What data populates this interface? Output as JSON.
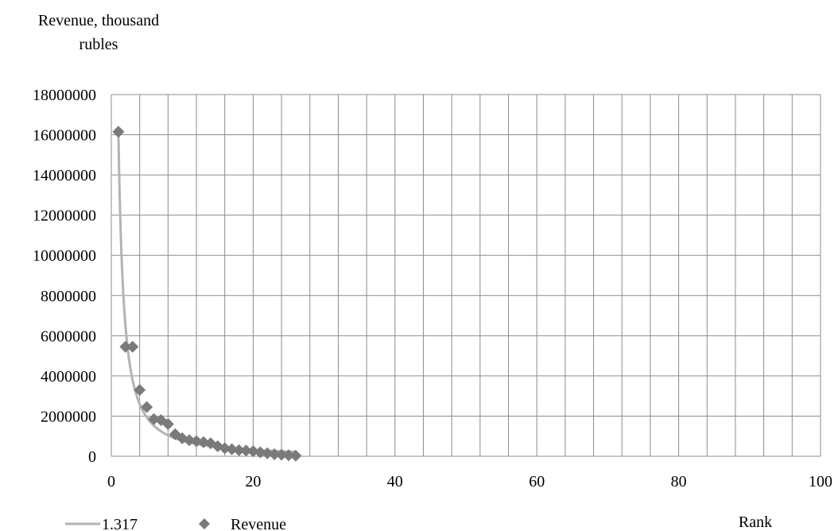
{
  "chart_data": {
    "type": "scatter",
    "ylabel_lines": [
      "Revenue, thousand",
      "rubles"
    ],
    "xlabel": "Rank",
    "xlim": [
      0,
      100
    ],
    "ylim": [
      0,
      18000000
    ],
    "x_ticks": [
      0,
      20,
      40,
      60,
      80,
      100
    ],
    "x_tick_labels": [
      "0",
      "20",
      "40",
      "60",
      "80",
      "100"
    ],
    "y_ticks": [
      0,
      2000000,
      4000000,
      6000000,
      8000000,
      10000000,
      12000000,
      14000000,
      16000000,
      18000000
    ],
    "y_tick_labels": [
      "0",
      "2000000",
      "4000000",
      "6000000",
      "8000000",
      "10000000",
      "12000000",
      "14000000",
      "16000000",
      "18000000"
    ],
    "grid": {
      "x_step": 4,
      "y_step": 2000000
    },
    "legend_position": "bottom-left",
    "series": [
      {
        "name": "1.317",
        "type": "line",
        "color": "#b3b3b3",
        "formula": {
          "a": 16150000,
          "b": 1.317
        },
        "x_range": [
          1,
          26
        ]
      },
      {
        "name": "Revenue",
        "type": "scatter",
        "marker": "diamond",
        "color": "#7a7a7a",
        "x": [
          1,
          2,
          3,
          4,
          5,
          6,
          7,
          8,
          9,
          10,
          11,
          12,
          13,
          14,
          15,
          16,
          17,
          18,
          19,
          20,
          21,
          22,
          23,
          24,
          25,
          26
        ],
        "y": [
          16150000,
          5450000,
          5450000,
          3300000,
          2450000,
          1850000,
          1800000,
          1600000,
          1100000,
          900000,
          800000,
          750000,
          700000,
          650000,
          500000,
          400000,
          350000,
          300000,
          280000,
          250000,
          200000,
          150000,
          100000,
          80000,
          50000,
          30000
        ]
      }
    ]
  }
}
